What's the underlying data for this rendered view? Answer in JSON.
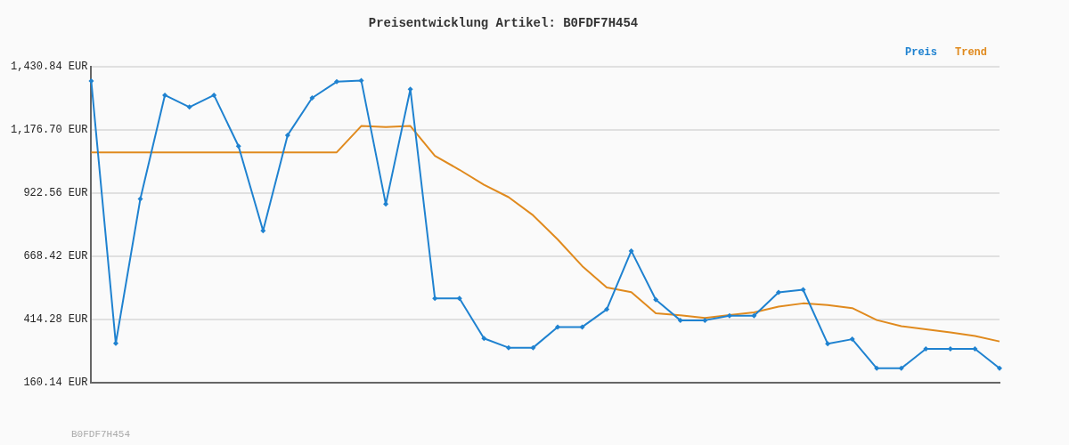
{
  "chart_data": {
    "type": "line",
    "title": "Preisentwicklung Artikel: B0FDF7H454",
    "categories": [
      null,
      null,
      null,
      null,
      null,
      null,
      null,
      null,
      null,
      null,
      null,
      null,
      null,
      null,
      null,
      null,
      null,
      null,
      null,
      null,
      null,
      null,
      null,
      null,
      null,
      null,
      null,
      null,
      null,
      null,
      null,
      null,
      null,
      null,
      null,
      null,
      null,
      null
    ],
    "series": [
      {
        "name": "Preis",
        "color": "#1f82d0",
        "marker": "diamond",
        "values": [
          1373,
          318,
          899,
          1316,
          1268,
          1316,
          1111,
          771,
          1155,
          1305,
          1370,
          1375,
          878,
          1340,
          499,
          499,
          338,
          301,
          301,
          384,
          384,
          455,
          690,
          494,
          411,
          411,
          429,
          429,
          523,
          534,
          317,
          335,
          218,
          218,
          296,
          296,
          296,
          218
        ]
      },
      {
        "name": "Trend",
        "color": "#e08a1e",
        "marker": "none",
        "values": [
          1086,
          1086,
          1086,
          1086,
          1086,
          1086,
          1086,
          1086,
          1086,
          1086,
          1086,
          1192,
          1188,
          1192,
          1072,
          1016,
          956,
          906,
          833,
          736,
          629,
          543,
          524,
          439,
          431,
          420,
          432,
          443,
          466,
          479,
          472,
          460,
          412,
          387,
          375,
          362,
          348,
          326
        ]
      }
    ],
    "ylim": [
      160.14,
      1430.84
    ],
    "yticks": [
      {
        "value": 160.14,
        "label": "160.14 EUR"
      },
      {
        "value": 414.28,
        "label": "414.28 EUR"
      },
      {
        "value": 668.42,
        "label": "668.42 EUR"
      },
      {
        "value": 922.56,
        "label": "922.56 EUR"
      },
      {
        "value": 1176.7,
        "label": "1,176.70 EUR"
      },
      {
        "value": 1430.84,
        "label": "1,430.84 EUR"
      }
    ],
    "grid": "y",
    "legend": "top right",
    "tick_labels": "y",
    "line_style": "solid",
    "annotations": [
      "B0FDF7H454"
    ]
  }
}
